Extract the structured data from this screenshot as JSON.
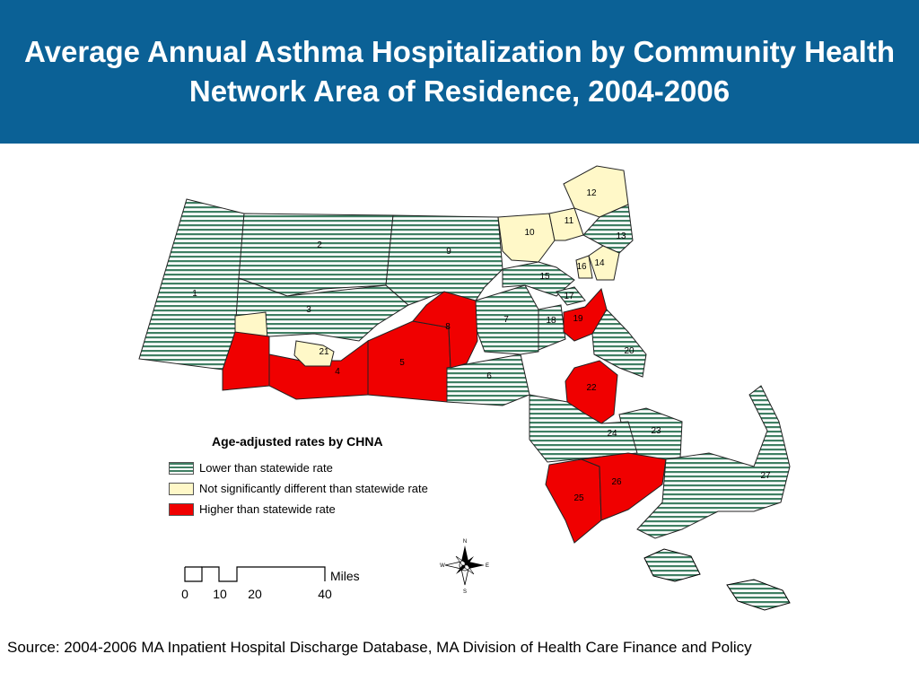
{
  "title": "Average Annual Asthma Hospitalization by Community Health Network Area of Residence, 2004-2006",
  "legend": {
    "title": "Age-adjusted rates by CHNA",
    "items": [
      {
        "label": "Lower than statewide rate",
        "category": "lower"
      },
      {
        "label": "Not significantly different than statewide rate",
        "category": "same"
      },
      {
        "label": "Higher than statewide rate",
        "category": "higher"
      }
    ]
  },
  "colors": {
    "lower_stripe": "#3f7f63",
    "same": "#fff8c8",
    "higher": "#f00000",
    "title_bar": "#0b6196"
  },
  "regions": [
    {
      "id": "1",
      "category": "lower"
    },
    {
      "id": "2",
      "category": "lower"
    },
    {
      "id": "3",
      "category": "lower"
    },
    {
      "id": "4",
      "category": "higher"
    },
    {
      "id": "5",
      "category": "higher"
    },
    {
      "id": "6",
      "category": "lower"
    },
    {
      "id": "7",
      "category": "lower"
    },
    {
      "id": "8",
      "category": "higher"
    },
    {
      "id": "9",
      "category": "lower"
    },
    {
      "id": "10",
      "category": "same"
    },
    {
      "id": "11",
      "category": "same"
    },
    {
      "id": "12",
      "category": "same"
    },
    {
      "id": "13",
      "category": "lower"
    },
    {
      "id": "14",
      "category": "same"
    },
    {
      "id": "15",
      "category": "lower"
    },
    {
      "id": "16",
      "category": "same"
    },
    {
      "id": "17",
      "category": "lower"
    },
    {
      "id": "18",
      "category": "lower"
    },
    {
      "id": "19",
      "category": "higher"
    },
    {
      "id": "20",
      "category": "lower"
    },
    {
      "id": "21",
      "category": "same"
    },
    {
      "id": "22",
      "category": "higher"
    },
    {
      "id": "23",
      "category": "lower"
    },
    {
      "id": "24",
      "category": "lower"
    },
    {
      "id": "25",
      "category": "higher"
    },
    {
      "id": "26",
      "category": "higher"
    },
    {
      "id": "27",
      "category": "lower"
    }
  ],
  "scale_bar": {
    "unit_label": "Miles",
    "ticks": [
      "0",
      "10",
      "20",
      "40"
    ]
  },
  "compass": {
    "n": "N",
    "s": "S",
    "e": "E",
    "w": "W"
  },
  "source": "Source: 2004-2006 MA Inpatient Hospital Discharge Database, MA Division of Health Care Finance and Policy"
}
